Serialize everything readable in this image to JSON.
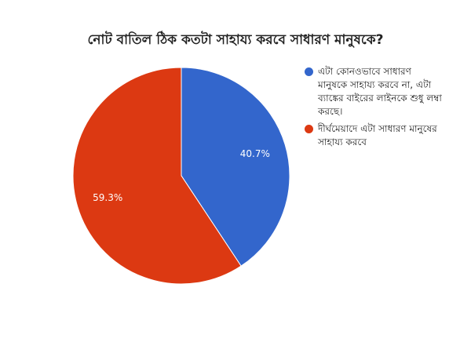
{
  "chart_data": {
    "type": "pie",
    "title": "নোট বাতিল ঠিক কতটা সাহায্য করবে সাধারণ মানুষকে?",
    "categories": [
      "এটা কোনওভাবে সাধারণ মানুষকে সাহায্য করবে না, এটা ব্যাঙ্কের বাইরের লাইনকে শুধু লম্বা করছে।",
      "দীর্ঘমেয়াদে এটা সাধারণ মানুষের সাহায্য করবে"
    ],
    "values": [
      40.7,
      59.3
    ],
    "value_labels": [
      "40.7%",
      "59.3%"
    ],
    "colors": [
      "#3366cc",
      "#dc3912"
    ],
    "legend_position": "right"
  }
}
